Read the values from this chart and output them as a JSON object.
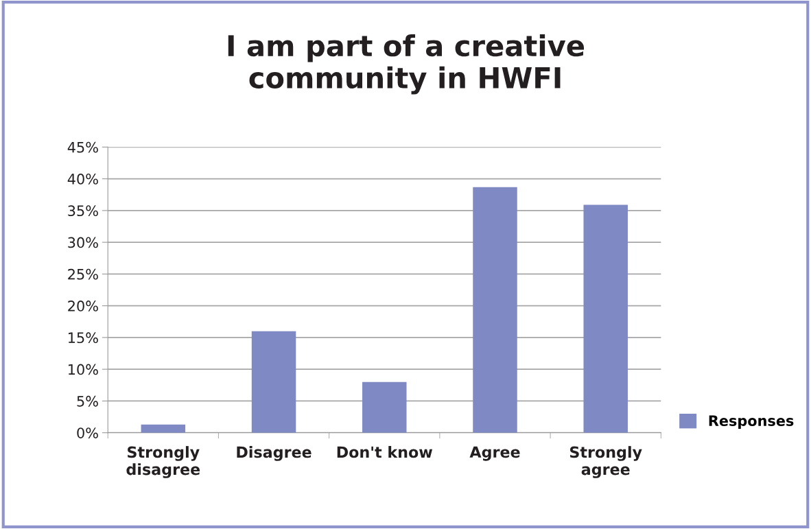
{
  "chart_data": {
    "type": "bar",
    "title": "I am part of a creative\ncommunity in HWFI",
    "categories": [
      "Strongly\ndisagree",
      "Disagree",
      "Don't know",
      "Agree",
      "Strongly\nagree"
    ],
    "series": [
      {
        "name": "Responses",
        "color": "#7f89c3",
        "values": [
          1.3,
          16.0,
          8.0,
          38.7,
          35.9
        ]
      }
    ],
    "ylim": [
      0,
      45
    ],
    "yticks": [
      {
        "value": 0,
        "label": "0%"
      },
      {
        "value": 5,
        "label": "5%"
      },
      {
        "value": 10,
        "label": "10%"
      },
      {
        "value": 15,
        "label": "15%"
      },
      {
        "value": 20,
        "label": "20%"
      },
      {
        "value": 25,
        "label": "25%"
      },
      {
        "value": 30,
        "label": "30%"
      },
      {
        "value": 35,
        "label": "35%"
      },
      {
        "value": 40,
        "label": "40%"
      },
      {
        "value": 45,
        "label": "45%"
      }
    ],
    "grid": "y",
    "legend": "right"
  }
}
